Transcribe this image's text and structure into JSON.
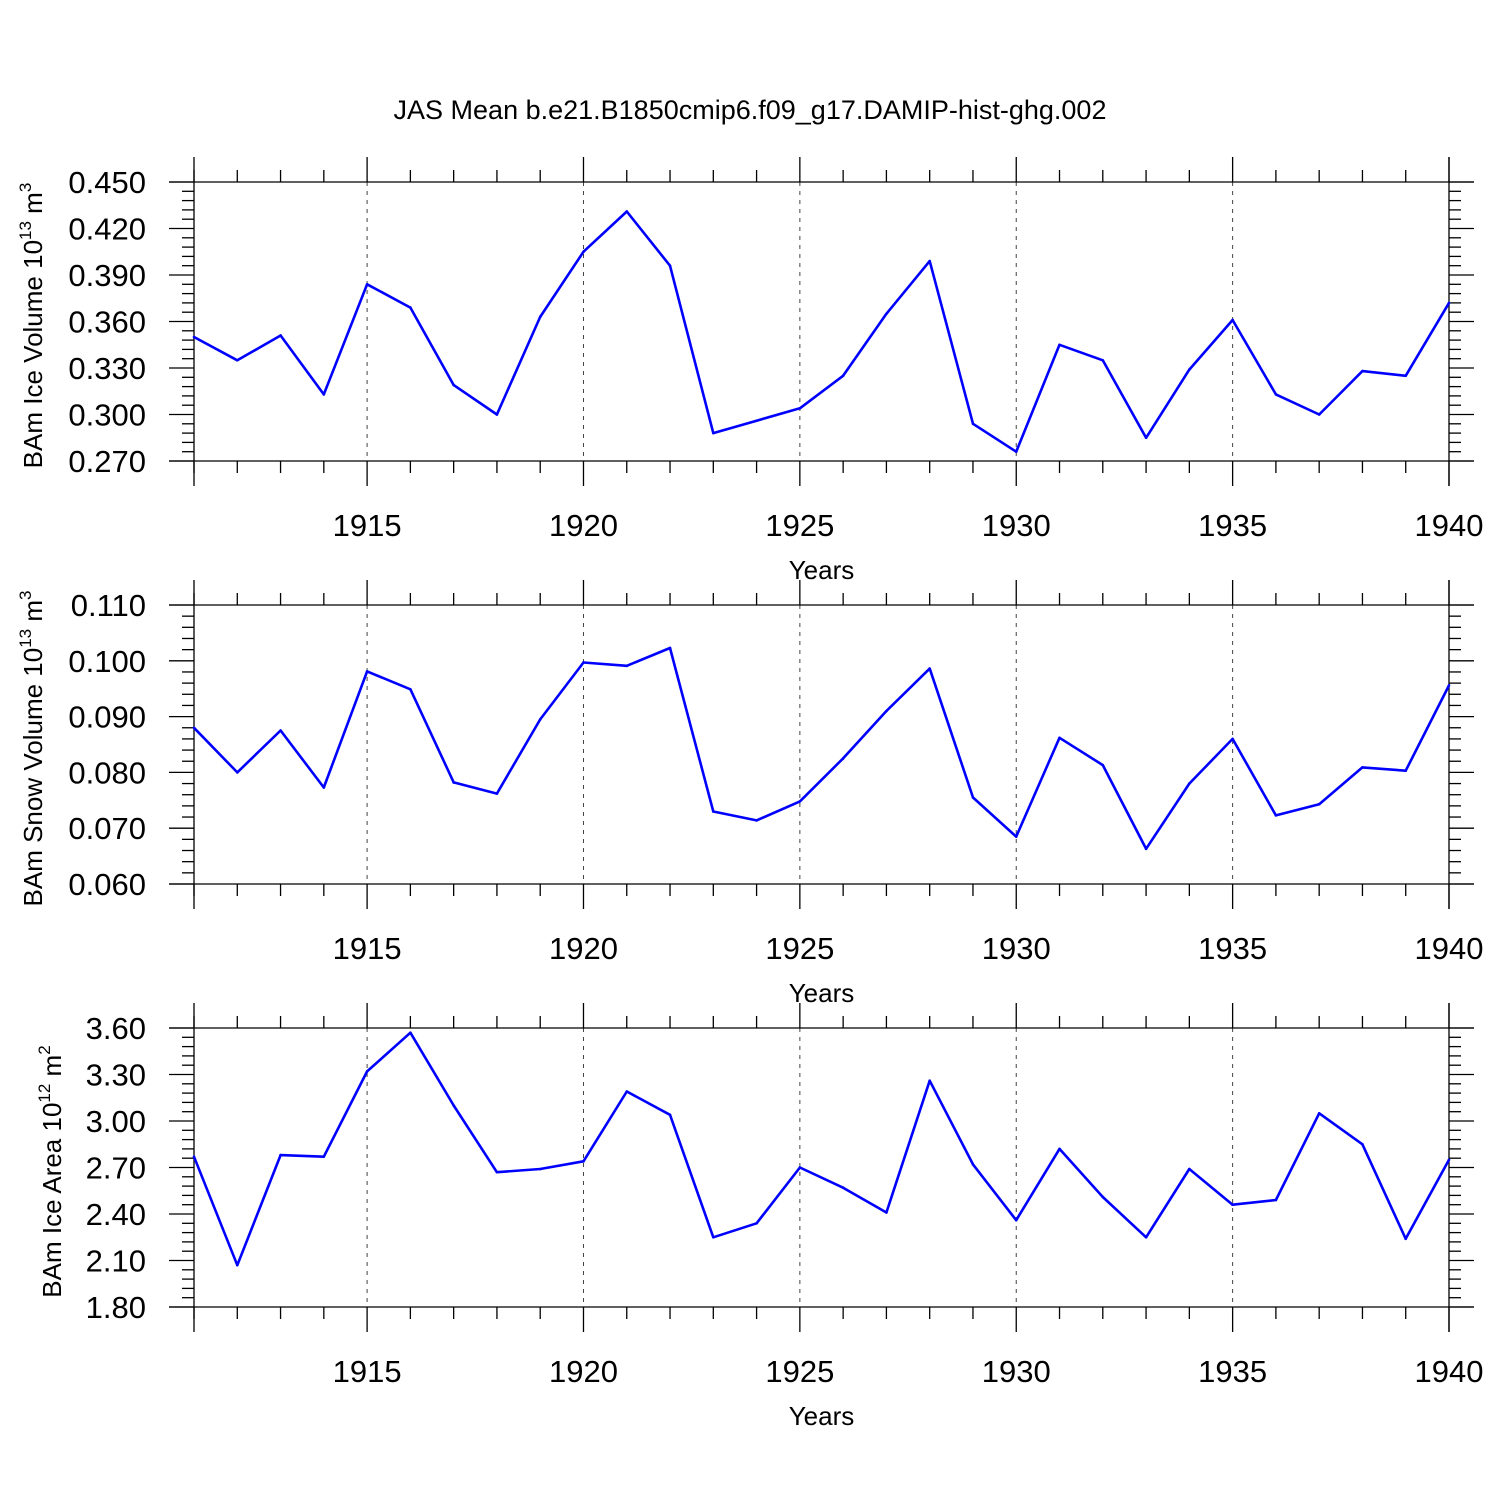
{
  "figure_title": "JAS Mean b.e21.B1850cmip6.f09_g17.DAMIP-hist-ghg.002",
  "chart_data": [
    {
      "type": "line",
      "ylabel": "BAm Ice Volume 10",
      "ylabel_exponent": "13",
      "ylabel_unit": "m",
      "ylabel_unit_exponent": "3",
      "xlabel": "Years",
      "xlim": [
        1911,
        1940
      ],
      "ylim": [
        0.27,
        0.45
      ],
      "yticks": [
        "0.270",
        "0.300",
        "0.330",
        "0.360",
        "0.390",
        "0.420",
        "0.450"
      ],
      "xticks": [
        "1915",
        "1920",
        "1925",
        "1930",
        "1935",
        "1940"
      ],
      "line_color": "#0000ff",
      "grid": "dashed vertical at major x ticks",
      "x": [
        1911,
        1912,
        1913,
        1914,
        1915,
        1916,
        1917,
        1918,
        1919,
        1920,
        1921,
        1922,
        1923,
        1924,
        1925,
        1926,
        1927,
        1928,
        1929,
        1930,
        1931,
        1932,
        1933,
        1934,
        1935,
        1936,
        1937,
        1938,
        1939,
        1940
      ],
      "values": [
        0.35,
        0.335,
        0.351,
        0.313,
        0.384,
        0.369,
        0.319,
        0.3,
        0.363,
        0.405,
        0.431,
        0.396,
        0.288,
        0.296,
        0.304,
        0.325,
        0.365,
        0.399,
        0.294,
        0.276,
        0.345,
        0.335,
        0.285,
        0.329,
        0.361,
        0.313,
        0.3,
        0.328,
        0.325,
        0.372
      ]
    },
    {
      "type": "line",
      "ylabel": "BAm Snow Volume 10",
      "ylabel_exponent": "13",
      "ylabel_unit": "m",
      "ylabel_unit_exponent": "3",
      "xlabel": "Years",
      "xlim": [
        1911,
        1940
      ],
      "ylim": [
        0.06,
        0.11
      ],
      "yticks": [
        "0.060",
        "0.070",
        "0.080",
        "0.090",
        "0.100",
        "0.110"
      ],
      "xticks": [
        "1915",
        "1920",
        "1925",
        "1930",
        "1935",
        "1940"
      ],
      "line_color": "#0000ff",
      "grid": "dashed vertical at major x ticks",
      "x": [
        1911,
        1912,
        1913,
        1914,
        1915,
        1916,
        1917,
        1918,
        1919,
        1920,
        1921,
        1922,
        1923,
        1924,
        1925,
        1926,
        1927,
        1928,
        1929,
        1930,
        1931,
        1932,
        1933,
        1934,
        1935,
        1936,
        1937,
        1938,
        1939,
        1940
      ],
      "values": [
        0.088,
        0.08,
        0.0875,
        0.0773,
        0.0981,
        0.0949,
        0.0782,
        0.0762,
        0.0895,
        0.0997,
        0.0991,
        0.1023,
        0.073,
        0.0714,
        0.0748,
        0.0825,
        0.091,
        0.0986,
        0.0755,
        0.0685,
        0.0862,
        0.0813,
        0.0663,
        0.078,
        0.086,
        0.0723,
        0.0743,
        0.0809,
        0.0803,
        0.0956
      ]
    },
    {
      "type": "line",
      "ylabel": "BAm Ice Area 10",
      "ylabel_exponent": "12",
      "ylabel_unit": "m",
      "ylabel_unit_exponent": "2",
      "xlabel": "Years",
      "xlim": [
        1911,
        1940
      ],
      "ylim": [
        1.8,
        3.6
      ],
      "yticks": [
        "1.80",
        "2.10",
        "2.40",
        "2.70",
        "3.00",
        "3.30",
        "3.60"
      ],
      "xticks": [
        "1915",
        "1920",
        "1925",
        "1930",
        "1935",
        "1940"
      ],
      "line_color": "#0000ff",
      "grid": "dashed vertical at major x ticks",
      "x": [
        1911,
        1912,
        1913,
        1914,
        1915,
        1916,
        1917,
        1918,
        1919,
        1920,
        1921,
        1922,
        1923,
        1924,
        1925,
        1926,
        1927,
        1928,
        1929,
        1930,
        1931,
        1932,
        1933,
        1934,
        1935,
        1936,
        1937,
        1938,
        1939,
        1940
      ],
      "values": [
        2.77,
        2.07,
        2.78,
        2.77,
        3.32,
        3.57,
        3.1,
        2.67,
        2.69,
        2.74,
        3.19,
        3.04,
        2.25,
        2.34,
        2.7,
        2.57,
        2.41,
        3.26,
        2.72,
        2.36,
        2.82,
        2.51,
        2.25,
        2.69,
        2.46,
        2.49,
        3.05,
        2.85,
        2.24,
        2.75
      ]
    }
  ]
}
